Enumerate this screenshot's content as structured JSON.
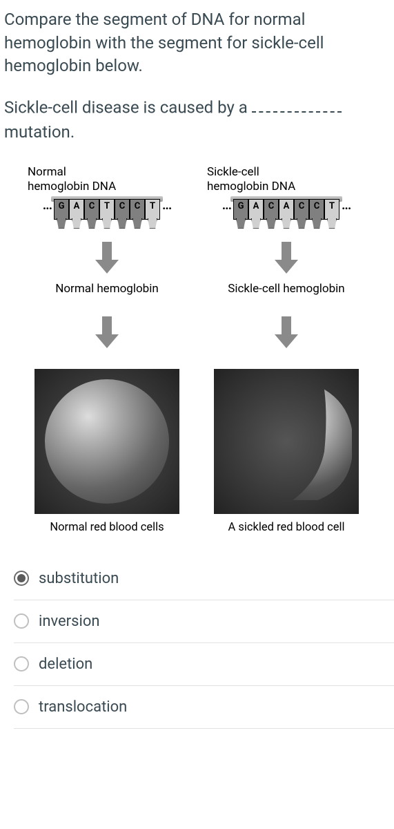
{
  "intro_text": "Compare the segment of DNA for normal hemoglobin with the segment for sickle-cell hemoglobin below.",
  "prompt_prefix": "Sickle-cell disease is caused by a",
  "prompt_suffix": "mutation.",
  "figure": {
    "normal": {
      "dna_label_line1": "Normal",
      "dna_label_line2": "hemoglobin DNA",
      "bases": [
        {
          "letter": "G",
          "shade": "dark"
        },
        {
          "letter": "A",
          "shade": "light"
        },
        {
          "letter": "C",
          "shade": "dark"
        },
        {
          "letter": "T",
          "shade": "light"
        },
        {
          "letter": "C",
          "shade": "dark"
        },
        {
          "letter": "C",
          "shade": "dark"
        },
        {
          "letter": "T",
          "shade": "light"
        }
      ],
      "mid_label": "Normal hemoglobin",
      "caption": "Normal red blood cells"
    },
    "sickle": {
      "dna_label_line1": "Sickle-cell",
      "dna_label_line2": "hemoglobin DNA",
      "bases": [
        {
          "letter": "G",
          "shade": "dark"
        },
        {
          "letter": "A",
          "shade": "light"
        },
        {
          "letter": "C",
          "shade": "dark"
        },
        {
          "letter": "A",
          "shade": "light"
        },
        {
          "letter": "C",
          "shade": "dark"
        },
        {
          "letter": "C",
          "shade": "dark"
        },
        {
          "letter": "T",
          "shade": "light"
        }
      ],
      "mid_label": "Sickle-cell hemoglobin",
      "caption": "A sickled red blood cell"
    },
    "ellipsis": "···",
    "arrow_color": "#8a8a8a"
  },
  "options": [
    {
      "label": "substitution",
      "selected": true
    },
    {
      "label": "inversion",
      "selected": false
    },
    {
      "label": "deletion",
      "selected": false
    },
    {
      "label": "translocation",
      "selected": false
    }
  ],
  "colors": {
    "text": "#3a4a52",
    "divider": "#e2e2e2",
    "radio_border": "#bfbfbf",
    "radio_fill": "#5b5b5b"
  }
}
